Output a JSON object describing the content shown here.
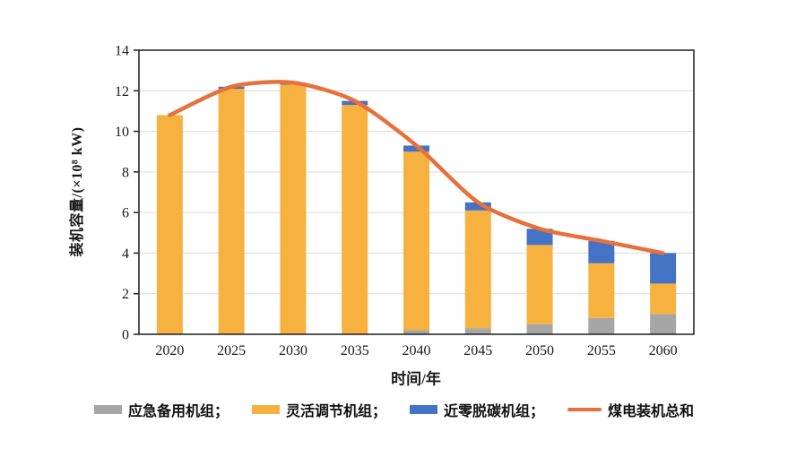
{
  "chart_data": {
    "type": "bar",
    "subtype": "stacked-bar-with-line",
    "title": "",
    "xlabel": "时间/年",
    "ylabel": "装机容量/(×10⁸ kW)",
    "categories": [
      "2020",
      "2025",
      "2030",
      "2035",
      "2040",
      "2045",
      "2050",
      "2055",
      "2060"
    ],
    "series": [
      {
        "name": "应急备用机组",
        "type": "bar",
        "color": "#A6A6A6",
        "values": [
          0,
          0,
          0,
          0,
          0.2,
          0.3,
          0.5,
          0.8,
          1.0
        ]
      },
      {
        "name": "灵活调节机组",
        "type": "bar",
        "color": "#F7B13E",
        "values": [
          10.8,
          12.1,
          12.3,
          11.3,
          8.8,
          5.8,
          3.9,
          2.7,
          1.5
        ]
      },
      {
        "name": "近零脱碳机组",
        "type": "bar",
        "color": "#4472C4",
        "values": [
          0,
          0.1,
          0.1,
          0.2,
          0.3,
          0.4,
          0.8,
          1.1,
          1.5
        ]
      },
      {
        "name": "煤电装机总和",
        "type": "line",
        "color": "#E7703C",
        "values": [
          10.8,
          12.2,
          12.4,
          11.5,
          9.3,
          6.5,
          5.2,
          4.6,
          4.0
        ]
      }
    ],
    "stacked": true,
    "ylim": [
      0,
      14
    ],
    "yticks": [
      0,
      2,
      4,
      6,
      8,
      10,
      12,
      14
    ],
    "grid": "horizontal",
    "legend_position": "bottom",
    "legend": [
      {
        "label": "应急备用机组；",
        "swatch": "rect",
        "color": "#A6A6A6"
      },
      {
        "label": "灵活调节机组；",
        "swatch": "rect",
        "color": "#F7B13E"
      },
      {
        "label": "近零脱碳机组；",
        "swatch": "rect",
        "color": "#4472C4"
      },
      {
        "label": "煤电装机总和",
        "swatch": "line",
        "color": "#E7703C"
      }
    ],
    "colors": {
      "grid": "#D9D9D9",
      "axis": "#2B2B2B",
      "text": "#1A1A1A",
      "background": "#FFFFFF"
    }
  }
}
